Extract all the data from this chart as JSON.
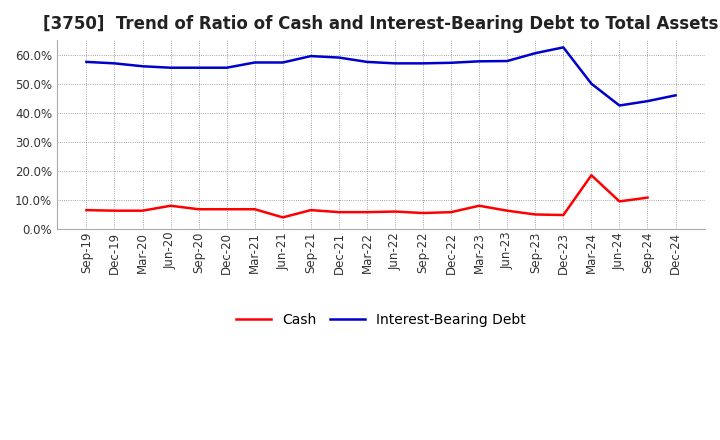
{
  "title": "[3750]  Trend of Ratio of Cash and Interest-Bearing Debt to Total Assets",
  "x_labels": [
    "Sep-19",
    "Dec-19",
    "Mar-20",
    "Jun-20",
    "Sep-20",
    "Dec-20",
    "Mar-21",
    "Jun-21",
    "Sep-21",
    "Dec-21",
    "Mar-22",
    "Jun-22",
    "Sep-22",
    "Dec-22",
    "Mar-23",
    "Jun-23",
    "Sep-23",
    "Dec-23",
    "Mar-24",
    "Jun-24",
    "Sep-24",
    "Dec-24"
  ],
  "cash": [
    0.065,
    0.063,
    0.063,
    0.08,
    0.068,
    0.068,
    0.068,
    0.04,
    0.065,
    0.058,
    0.058,
    0.06,
    0.055,
    0.058,
    0.08,
    0.063,
    0.05,
    0.048,
    0.185,
    0.095,
    0.108,
    null
  ],
  "interest_bearing_debt": [
    0.575,
    0.57,
    0.56,
    0.555,
    0.555,
    0.555,
    0.573,
    0.573,
    0.595,
    0.59,
    0.575,
    0.57,
    0.57,
    0.572,
    0.577,
    0.578,
    0.605,
    0.625,
    0.5,
    0.425,
    0.44,
    0.46
  ],
  "cash_color": "#ff0000",
  "debt_color": "#0000cc",
  "background_color": "#ffffff",
  "plot_bg_color": "#ffffff",
  "ylim": [
    0.0,
    0.65
  ],
  "yticks": [
    0.0,
    0.1,
    0.2,
    0.3,
    0.4,
    0.5,
    0.6
  ],
  "legend_labels": [
    "Cash",
    "Interest-Bearing Debt"
  ],
  "title_fontsize": 12,
  "axis_fontsize": 8.5
}
